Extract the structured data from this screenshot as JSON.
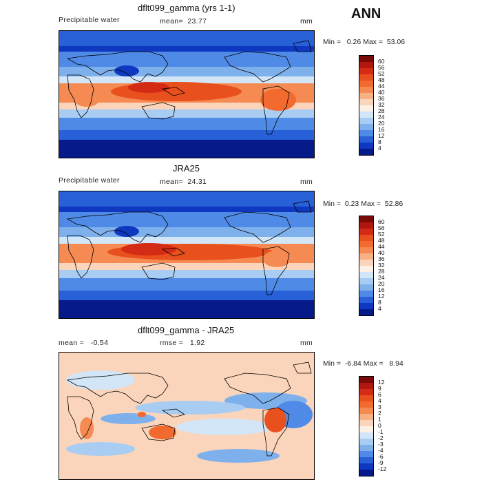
{
  "header": {
    "season": "ANN"
  },
  "panels": [
    {
      "title": "dflt099_gamma (yrs 1-1)",
      "left_label": "Precipitable water",
      "stat_label": "mean=",
      "stat_value": "23.77",
      "units": "mm",
      "min_label": "Min =",
      "min_value": "0.26",
      "max_label": "Max =",
      "max_value": "53.06",
      "levels": [
        "60",
        "56",
        "52",
        "48",
        "44",
        "40",
        "36",
        "32",
        "28",
        "24",
        "20",
        "16",
        "12",
        "8",
        "4"
      ]
    },
    {
      "title": "JRA25",
      "left_label": "Precipitable water",
      "stat_label": "mean=",
      "stat_value": "24.31",
      "units": "mm",
      "min_label": "Min =",
      "min_value": "0.23",
      "max_label": "Max =",
      "max_value": "52.86",
      "levels": [
        "60",
        "56",
        "52",
        "48",
        "44",
        "40",
        "36",
        "32",
        "28",
        "24",
        "20",
        "16",
        "12",
        "8",
        "4"
      ]
    },
    {
      "title": "dflt099_gamma - JRA25",
      "left_label": "mean =",
      "left_value": "-0.54",
      "stat_label": "rmse =",
      "stat_value": "1.92",
      "units": "mm",
      "min_label": "Min =",
      "min_value": "-6.84",
      "max_label": "Max =",
      "max_value": "8.94",
      "levels": [
        "12",
        "9",
        "6",
        "4",
        "3",
        "2",
        "1",
        "0",
        "-1",
        "-2",
        "-3",
        "-4",
        "-6",
        "-9",
        "-12"
      ]
    }
  ],
  "colors": {
    "field_scale": [
      "#7a0a08",
      "#b0170e",
      "#d42c14",
      "#e8501d",
      "#f26a2e",
      "#f58a52",
      "#f8b184",
      "#fbd5bb",
      "#fdf1e6",
      "#d2e6f8",
      "#a9cdf2",
      "#7eb0ec",
      "#4f8ae6",
      "#2860d8",
      "#0f38c0",
      "#061a8a"
    ],
    "diff_scale": [
      "#7a0a08",
      "#b0170e",
      "#d42c14",
      "#e8501d",
      "#f26a2e",
      "#f58a52",
      "#f8b184",
      "#fbd5bb",
      "#fdf1e6",
      "#d2e6f8",
      "#a9cdf2",
      "#7eb0ec",
      "#4f8ae6",
      "#2860d8",
      "#0f38c0",
      "#061a8a"
    ]
  }
}
